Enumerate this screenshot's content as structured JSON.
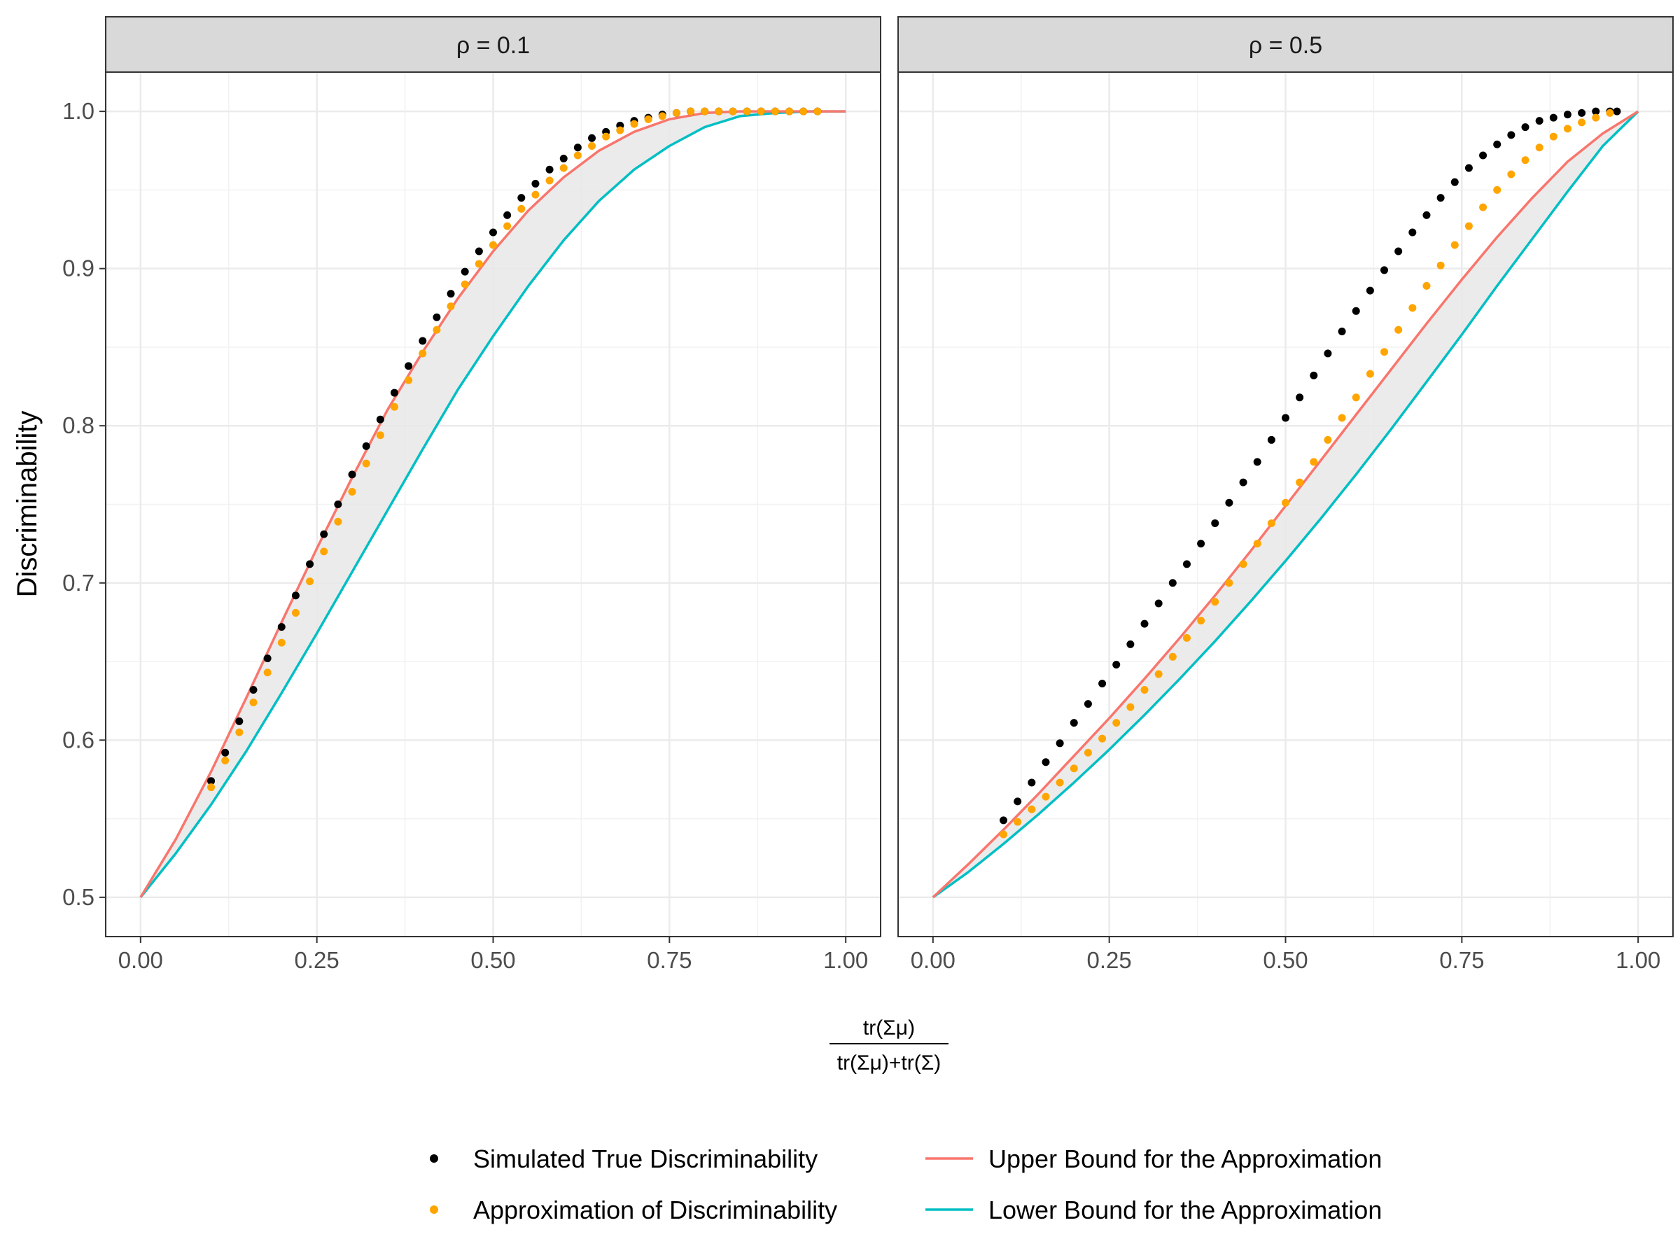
{
  "chart_data": {
    "type": "scatter",
    "ylabel": "Discriminability",
    "xlabel": {
      "numerator": "tr(Σμ)",
      "denominator": "tr(Σμ)+tr(Σ)"
    },
    "xlim": [
      0,
      1
    ],
    "ylim": [
      0.475,
      1.025
    ],
    "x_ticks": [
      "0.00",
      "0.25",
      "0.50",
      "0.75",
      "1.00"
    ],
    "y_ticks": [
      "0.5",
      "0.6",
      "0.7",
      "0.8",
      "0.9",
      "1.0"
    ],
    "grid": true,
    "legend_position": "bottom",
    "colors": {
      "simulated": "#000000",
      "approximation": "#FFA500",
      "upper_bound": "#F8766D",
      "lower_bound": "#00BFC4",
      "band_fill": "#e8e8e8",
      "strip_fill": "#d9d9d9"
    },
    "legend": {
      "simulated": "Simulated True Discriminability",
      "approximation": "Approximation of Discriminability",
      "upper_bound": "Upper Bound for the Approximation",
      "lower_bound": "Lower Bound for the Approximation"
    },
    "panels": [
      {
        "label": "ρ = 0.1",
        "upper_bound": {
          "x": [
            0,
            0.05,
            0.1,
            0.15,
            0.2,
            0.25,
            0.3,
            0.35,
            0.4,
            0.45,
            0.5,
            0.55,
            0.6,
            0.65,
            0.7,
            0.75,
            0.8,
            0.85,
            0.9,
            0.95,
            1.0
          ],
          "y": [
            0.5,
            0.537,
            0.58,
            0.627,
            0.675,
            0.722,
            0.767,
            0.81,
            0.847,
            0.881,
            0.911,
            0.937,
            0.958,
            0.975,
            0.987,
            0.995,
            0.999,
            1.0,
            1.0,
            1.0,
            1.0
          ]
        },
        "lower_bound": {
          "x": [
            0,
            0.05,
            0.1,
            0.15,
            0.2,
            0.25,
            0.3,
            0.35,
            0.4,
            0.45,
            0.5,
            0.55,
            0.6,
            0.65,
            0.7,
            0.75,
            0.8,
            0.85,
            0.9,
            0.95,
            1.0
          ],
          "y": [
            0.5,
            0.528,
            0.559,
            0.593,
            0.63,
            0.668,
            0.707,
            0.746,
            0.785,
            0.823,
            0.857,
            0.889,
            0.918,
            0.943,
            0.963,
            0.978,
            0.99,
            0.997,
            0.999,
            1.0,
            1.0
          ]
        },
        "simulated": {
          "x": [
            0.1,
            0.12,
            0.14,
            0.16,
            0.18,
            0.2,
            0.22,
            0.24,
            0.26,
            0.28,
            0.3,
            0.32,
            0.34,
            0.36,
            0.38,
            0.4,
            0.42,
            0.44,
            0.46,
            0.48,
            0.5,
            0.52,
            0.54,
            0.56,
            0.58,
            0.6,
            0.62,
            0.64,
            0.66,
            0.68,
            0.7,
            0.72,
            0.74,
            0.76,
            0.78,
            0.8,
            0.82,
            0.84,
            0.86,
            0.88,
            0.9,
            0.92,
            0.94,
            0.96
          ],
          "y": [
            0.574,
            0.592,
            0.612,
            0.632,
            0.652,
            0.672,
            0.692,
            0.712,
            0.731,
            0.75,
            0.769,
            0.787,
            0.804,
            0.821,
            0.838,
            0.854,
            0.869,
            0.884,
            0.898,
            0.911,
            0.923,
            0.934,
            0.945,
            0.954,
            0.963,
            0.97,
            0.977,
            0.983,
            0.987,
            0.991,
            0.994,
            0.996,
            0.998,
            0.999,
            1.0,
            1.0,
            1.0,
            1.0,
            1.0,
            1.0,
            1.0,
            1.0,
            1.0,
            1.0
          ]
        },
        "approximation": {
          "x": [
            0.1,
            0.12,
            0.14,
            0.16,
            0.18,
            0.2,
            0.22,
            0.24,
            0.26,
            0.28,
            0.3,
            0.32,
            0.34,
            0.36,
            0.38,
            0.4,
            0.42,
            0.44,
            0.46,
            0.48,
            0.5,
            0.52,
            0.54,
            0.56,
            0.58,
            0.6,
            0.62,
            0.64,
            0.66,
            0.68,
            0.7,
            0.72,
            0.74,
            0.76,
            0.78,
            0.8,
            0.82,
            0.84,
            0.86,
            0.88,
            0.9,
            0.92,
            0.94,
            0.96
          ],
          "y": [
            0.57,
            0.587,
            0.605,
            0.624,
            0.643,
            0.662,
            0.681,
            0.701,
            0.72,
            0.739,
            0.758,
            0.776,
            0.794,
            0.812,
            0.829,
            0.846,
            0.861,
            0.876,
            0.89,
            0.903,
            0.915,
            0.927,
            0.938,
            0.947,
            0.956,
            0.964,
            0.972,
            0.978,
            0.984,
            0.988,
            0.992,
            0.995,
            0.997,
            0.999,
            1.0,
            1.0,
            1.0,
            1.0,
            1.0,
            1.0,
            1.0,
            1.0,
            1.0,
            1.0
          ]
        }
      },
      {
        "label": "ρ = 0.5",
        "upper_bound": {
          "x": [
            0,
            0.05,
            0.1,
            0.15,
            0.2,
            0.25,
            0.3,
            0.35,
            0.4,
            0.45,
            0.5,
            0.55,
            0.6,
            0.65,
            0.7,
            0.75,
            0.8,
            0.85,
            0.9,
            0.95,
            1.0
          ],
          "y": [
            0.5,
            0.521,
            0.543,
            0.566,
            0.59,
            0.614,
            0.639,
            0.665,
            0.692,
            0.72,
            0.749,
            0.778,
            0.807,
            0.836,
            0.865,
            0.893,
            0.92,
            0.945,
            0.968,
            0.986,
            1.0
          ]
        },
        "lower_bound": {
          "x": [
            0,
            0.05,
            0.1,
            0.15,
            0.2,
            0.25,
            0.3,
            0.35,
            0.4,
            0.45,
            0.5,
            0.55,
            0.6,
            0.65,
            0.7,
            0.75,
            0.8,
            0.85,
            0.9,
            0.95,
            1.0
          ],
          "y": [
            0.5,
            0.516,
            0.534,
            0.553,
            0.573,
            0.594,
            0.616,
            0.639,
            0.663,
            0.688,
            0.714,
            0.741,
            0.769,
            0.798,
            0.828,
            0.858,
            0.889,
            0.919,
            0.949,
            0.978,
            1.0
          ]
        },
        "simulated": {
          "x": [
            0.1,
            0.12,
            0.14,
            0.16,
            0.18,
            0.2,
            0.22,
            0.24,
            0.26,
            0.28,
            0.3,
            0.32,
            0.34,
            0.36,
            0.38,
            0.4,
            0.42,
            0.44,
            0.46,
            0.48,
            0.5,
            0.52,
            0.54,
            0.56,
            0.58,
            0.6,
            0.62,
            0.64,
            0.66,
            0.68,
            0.7,
            0.72,
            0.74,
            0.76,
            0.78,
            0.8,
            0.82,
            0.84,
            0.86,
            0.88,
            0.9,
            0.92,
            0.94,
            0.96,
            0.97
          ],
          "y": [
            0.549,
            0.561,
            0.573,
            0.586,
            0.598,
            0.611,
            0.623,
            0.636,
            0.648,
            0.661,
            0.674,
            0.687,
            0.7,
            0.712,
            0.725,
            0.738,
            0.751,
            0.764,
            0.777,
            0.791,
            0.805,
            0.818,
            0.832,
            0.846,
            0.86,
            0.873,
            0.886,
            0.899,
            0.911,
            0.923,
            0.934,
            0.945,
            0.955,
            0.964,
            0.972,
            0.979,
            0.985,
            0.99,
            0.994,
            0.996,
            0.998,
            0.999,
            1.0,
            1.0,
            1.0
          ]
        },
        "approximation": {
          "x": [
            0.1,
            0.12,
            0.14,
            0.16,
            0.18,
            0.2,
            0.22,
            0.24,
            0.26,
            0.28,
            0.3,
            0.32,
            0.34,
            0.36,
            0.38,
            0.4,
            0.42,
            0.44,
            0.46,
            0.48,
            0.5,
            0.52,
            0.54,
            0.56,
            0.58,
            0.6,
            0.62,
            0.64,
            0.66,
            0.68,
            0.7,
            0.72,
            0.74,
            0.76,
            0.78,
            0.8,
            0.82,
            0.84,
            0.86,
            0.88,
            0.9,
            0.92,
            0.94,
            0.96
          ],
          "y": [
            0.54,
            0.548,
            0.556,
            0.564,
            0.573,
            0.582,
            0.592,
            0.601,
            0.611,
            0.621,
            0.632,
            0.642,
            0.653,
            0.665,
            0.676,
            0.688,
            0.7,
            0.712,
            0.725,
            0.738,
            0.751,
            0.764,
            0.777,
            0.791,
            0.805,
            0.818,
            0.833,
            0.847,
            0.861,
            0.875,
            0.889,
            0.902,
            0.915,
            0.927,
            0.939,
            0.95,
            0.96,
            0.969,
            0.977,
            0.984,
            0.989,
            0.993,
            0.996,
            0.999
          ]
        }
      }
    ]
  }
}
